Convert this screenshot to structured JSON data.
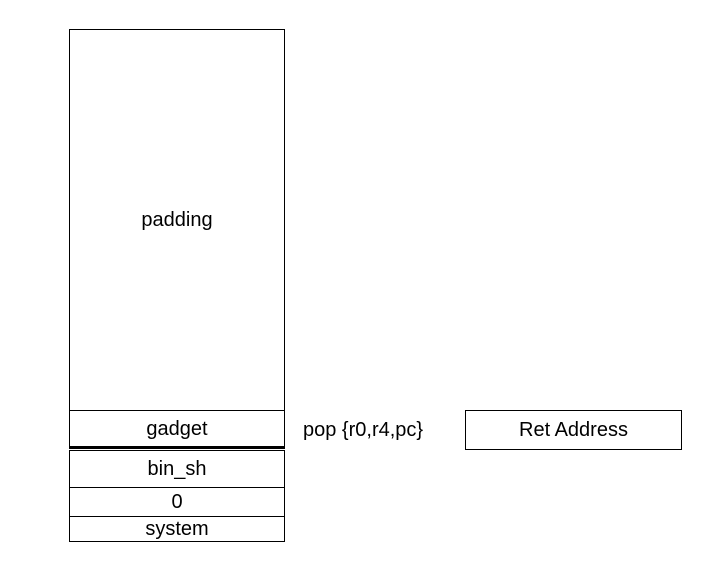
{
  "stack": {
    "padding": "padding",
    "gadget": "gadget",
    "bin_sh": "bin_sh",
    "zero": "0",
    "system": "system"
  },
  "gadget_instruction": "pop {r0,r4,pc}",
  "ret_address": "Ret Address"
}
